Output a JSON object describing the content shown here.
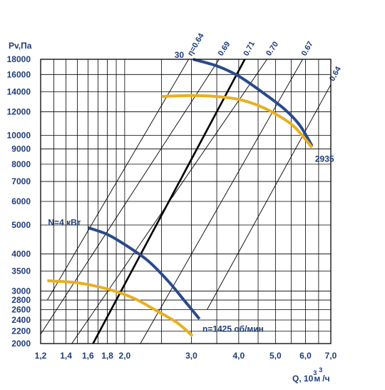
{
  "chart_data": {
    "type": "line",
    "title": "",
    "xlabel": "Q, 10",
    "xlabel_sup": "3",
    "xlabel_unit": "м",
    "xlabel_unit_sup": "3",
    "xlabel_tail": "/ч",
    "ylabel": "Pv,Па",
    "x_scale": "log",
    "y_scale": "log",
    "xlim": [
      1.2,
      7.0
    ],
    "ylim": [
      2000,
      18000
    ],
    "x_ticks": [
      {
        "value": 1.2,
        "label": "1,2"
      },
      {
        "value": 1.4,
        "label": "1,4"
      },
      {
        "value": 1.6,
        "label": "1,6"
      },
      {
        "value": 1.8,
        "label": "1,8"
      },
      {
        "value": 2.0,
        "label": "2,0"
      },
      {
        "value": 3.0,
        "label": "3,0"
      },
      {
        "value": 4.0,
        "label": "4,0"
      },
      {
        "value": 5.0,
        "label": "5,0"
      },
      {
        "value": 6.0,
        "label": "6,0"
      },
      {
        "value": 7.0,
        "label": "7,0"
      }
    ],
    "x_grid": [
      1.2,
      1.3,
      1.4,
      1.5,
      1.6,
      1.7,
      1.8,
      1.9,
      2.0,
      2.5,
      3.0,
      3.5,
      4.0,
      4.5,
      5.0,
      5.5,
      6.0,
      6.5,
      7.0
    ],
    "y_ticks": [
      {
        "value": 2000,
        "label": "2000"
      },
      {
        "value": 2200,
        "label": "2200"
      },
      {
        "value": 2400,
        "label": "2400"
      },
      {
        "value": 2600,
        "label": "2600"
      },
      {
        "value": 2800,
        "label": "2800"
      },
      {
        "value": 3000,
        "label": "3000"
      },
      {
        "value": 3500,
        "label": "3500"
      },
      {
        "value": 4000,
        "label": "4000"
      },
      {
        "value": 5000,
        "label": "5000"
      },
      {
        "value": 6000,
        "label": "6000"
      },
      {
        "value": 7000,
        "label": "7000"
      },
      {
        "value": 8000,
        "label": "8000"
      },
      {
        "value": 9000,
        "label": "9000"
      },
      {
        "value": 10000,
        "label": "10000"
      },
      {
        "value": 12000,
        "label": "12000"
      },
      {
        "value": 14000,
        "label": "14000"
      },
      {
        "value": 16000,
        "label": "16000"
      },
      {
        "value": 18000,
        "label": "18000"
      }
    ],
    "grid": true,
    "efficiency_lines": [
      {
        "label": "η=0.64",
        "points": [
          [
            1.25,
            2800
          ],
          [
            2.95,
            18000
          ]
        ]
      },
      {
        "label": "0.69",
        "points": [
          [
            1.2,
            2150
          ],
          [
            3.55,
            18000
          ]
        ]
      },
      {
        "label": "0.70",
        "points": [
          [
            1.45,
            2000
          ],
          [
            4.75,
            18000
          ]
        ]
      },
      {
        "label": "0.67",
        "points": [
          [
            2.2,
            2000
          ],
          [
            5.9,
            18000
          ]
        ]
      },
      {
        "label": "0.64",
        "points": [
          [
            3.3,
            2600
          ],
          [
            7.0,
            14800
          ]
        ]
      }
    ],
    "max_efficiency_line": {
      "label": "0.71",
      "color": "#000000",
      "points": [
        [
          1.65,
          2000
        ],
        [
          4.15,
          18000
        ]
      ]
    },
    "series": [
      {
        "name": "N=4 кВт",
        "kind": "power",
        "color": "#2b4a8c",
        "points": [
          [
            1.6,
            4900
          ],
          [
            1.8,
            4650
          ],
          [
            2.0,
            4300
          ],
          [
            2.3,
            3800
          ],
          [
            2.6,
            3250
          ],
          [
            2.9,
            2750
          ],
          [
            3.15,
            2420
          ]
        ]
      },
      {
        "name": "n=1425 об/мин",
        "kind": "pressure",
        "color": "#e8b020",
        "points": [
          [
            1.25,
            3250
          ],
          [
            1.5,
            3200
          ],
          [
            1.8,
            3050
          ],
          [
            2.1,
            2850
          ],
          [
            2.4,
            2600
          ],
          [
            2.75,
            2350
          ],
          [
            3.02,
            2120
          ]
        ]
      },
      {
        "name": "30",
        "kind": "power",
        "color": "#2b4a8c",
        "points": [
          [
            3.03,
            18000
          ],
          [
            3.5,
            17100
          ],
          [
            4.0,
            15800
          ],
          [
            4.6,
            14000
          ],
          [
            5.3,
            12200
          ],
          [
            5.8,
            10800
          ],
          [
            6.25,
            9200
          ]
        ]
      },
      {
        "name": "2935",
        "kind": "pressure",
        "color": "#e8b020",
        "points": [
          [
            2.5,
            13500
          ],
          [
            3.0,
            13600
          ],
          [
            3.5,
            13500
          ],
          [
            4.0,
            13200
          ],
          [
            4.5,
            12600
          ],
          [
            5.0,
            11800
          ],
          [
            5.6,
            10700
          ],
          [
            6.25,
            9100
          ]
        ]
      }
    ]
  }
}
